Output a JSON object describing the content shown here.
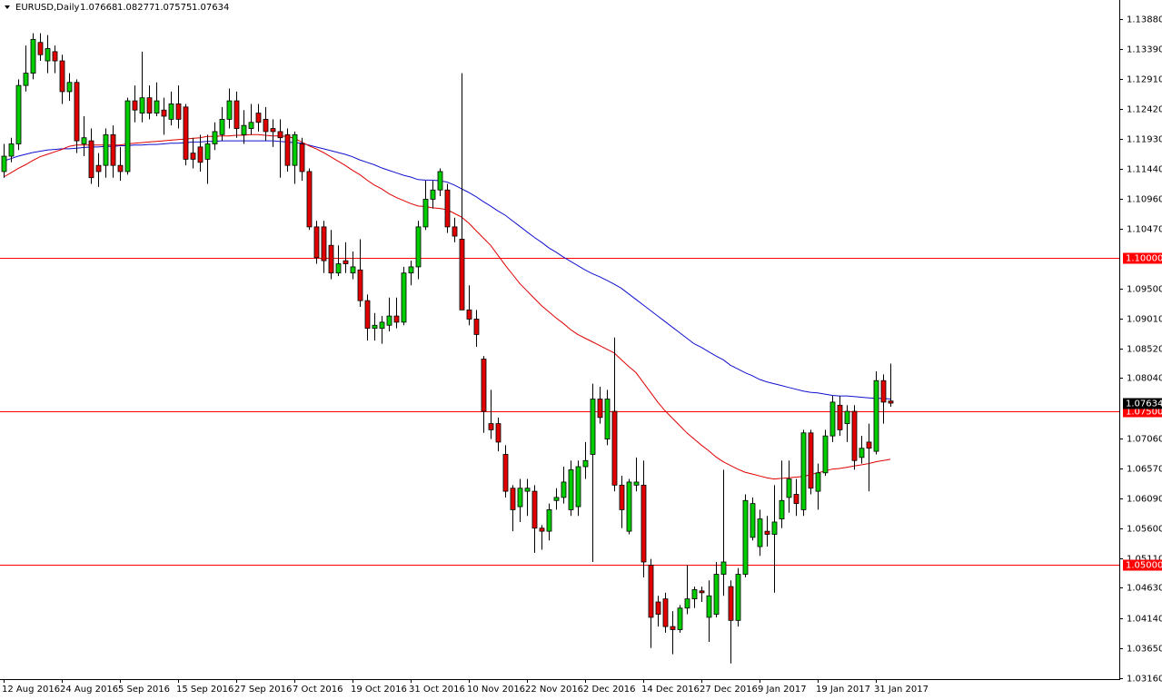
{
  "chart_data": {
    "type": "candlestick",
    "title": "EURUSD,Daily",
    "categories": [
      "12 Aug 2016",
      null,
      null,
      null,
      null,
      null,
      null,
      null,
      "24 Aug 2016",
      null,
      null,
      null,
      null,
      null,
      null,
      null,
      "5 Sep 2016",
      null,
      null,
      null,
      null,
      null,
      null,
      null,
      "15 Sep 2016",
      null,
      null,
      null,
      null,
      null,
      null,
      null,
      "27 Sep 2016",
      null,
      null,
      null,
      null,
      null,
      null,
      null,
      "7 Oct 2016",
      null,
      null,
      null,
      null,
      null,
      null,
      null,
      "19 Oct 2016",
      null,
      null,
      null,
      null,
      null,
      null,
      null,
      "31 Oct 2016",
      null,
      null,
      null,
      null,
      null,
      null,
      null,
      "10 Nov 2016",
      null,
      null,
      null,
      null,
      null,
      null,
      null,
      "22 Nov 2016",
      null,
      null,
      null,
      null,
      null,
      null,
      null,
      "2 Dec 2016",
      null,
      null,
      null,
      null,
      null,
      null,
      null,
      "14 Dec 2016",
      null,
      null,
      null,
      null,
      null,
      null,
      null,
      "27 Dec 2016",
      null,
      null,
      null,
      null,
      null,
      null,
      null,
      "9 Jan 2017",
      null,
      null,
      null,
      null,
      null,
      null,
      null,
      "19 Jan 2017",
      null,
      null,
      null,
      null,
      null,
      null,
      null,
      "31 Jan 2017",
      null,
      null
    ],
    "open": [
      1.114,
      1.1165,
      1.1185,
      1.128,
      1.13,
      1.135,
      1.132,
      1.1335,
      1.132,
      1.127,
      1.1285,
      1.1185,
      1.119,
      1.115,
      1.115,
      1.12,
      1.115,
      1.114,
      1.1255,
      1.1235,
      1.126,
      1.1235,
      1.124,
      1.1225,
      1.125,
      1.1245,
      1.117,
      1.118,
      1.116,
      1.1185,
      1.12,
      1.1225,
      1.1255,
      1.12,
      1.121,
      1.1235,
      1.1225,
      1.121,
      1.1205,
      1.12,
      1.115,
      1.1185,
      1.114,
      1.105,
      1.105,
      1.102,
      1.0975,
      1.0995,
      1.0975,
      1.098,
      1.093,
      1.0885,
      1.0885,
      1.089,
      1.0905,
      1.0895,
      1.0975,
      1.0985,
      1.105,
      1.1095,
      1.111,
      1.111,
      1.105,
      1.103,
      1.0915,
      1.09,
      1.0835,
      1.073,
      1.073,
      1.068,
      1.0625,
      1.0595,
      1.062,
      1.062,
      1.056,
      1.0555,
      1.0605,
      1.061,
      1.059,
      1.0595,
      1.066,
      1.068,
      1.077,
      1.0705,
      1.075,
      1.063,
      1.0555,
      1.063,
      1.063,
      1.05,
      1.044,
      1.0445,
      1.04,
      1.0395,
      1.043,
      1.0445,
      1.0458,
      1.0415,
      1.042,
      1.0485,
      1.0465,
      1.041,
      1.0485,
      1.0545,
      1.053,
      1.0555,
      1.055,
      1.0575,
      1.061,
      1.0615,
      1.059,
      1.0715,
      1.062,
      1.065,
      1.071,
      1.076,
      1.073,
      1.075,
      1.0675,
      1.07,
      1.0685,
      1.08,
      1.07668
    ],
    "high": [
      1.1185,
      1.1195,
      1.129,
      1.1345,
      1.1365,
      1.1365,
      1.1362,
      1.1345,
      1.133,
      1.13,
      1.129,
      1.123,
      1.121,
      1.117,
      1.121,
      1.1215,
      1.118,
      1.126,
      1.128,
      1.1335,
      1.128,
      1.1285,
      1.126,
      1.127,
      1.128,
      1.125,
      1.1195,
      1.12,
      1.12,
      1.122,
      1.1245,
      1.1275,
      1.127,
      1.124,
      1.125,
      1.125,
      1.1245,
      1.1225,
      1.1225,
      1.121,
      1.1205,
      1.1195,
      1.1145,
      1.106,
      1.106,
      1.1045,
      1.102,
      1.1025,
      1.101,
      1.103,
      1.094,
      1.091,
      1.0905,
      1.0935,
      1.0935,
      1.0985,
      1.0995,
      1.106,
      1.1125,
      1.1125,
      1.1145,
      1.112,
      1.1065,
      1.13,
      1.0955,
      1.0915,
      1.084,
      1.0785,
      1.074,
      1.0695,
      1.063,
      1.064,
      1.064,
      1.063,
      1.0565,
      1.06,
      1.0625,
      1.066,
      1.067,
      1.067,
      1.07,
      1.0795,
      1.079,
      1.0785,
      1.087,
      1.0645,
      1.064,
      1.0675,
      1.067,
      1.051,
      1.045,
      1.0455,
      1.0425,
      1.0435,
      1.05,
      1.0465,
      1.0465,
      1.0475,
      1.0505,
      1.0655,
      1.0475,
      1.0495,
      1.0615,
      1.061,
      1.059,
      1.058,
      1.063,
      1.067,
      1.067,
      1.064,
      1.072,
      1.072,
      1.0665,
      1.072,
      1.0775,
      1.0775,
      1.076,
      1.076,
      1.071,
      1.073,
      1.0815,
      1.081,
      1.08277
    ],
    "low": [
      1.113,
      1.1155,
      1.1175,
      1.127,
      1.129,
      1.132,
      1.13,
      1.13,
      1.125,
      1.1255,
      1.117,
      1.1165,
      1.112,
      1.1115,
      1.113,
      1.113,
      1.1125,
      1.1135,
      1.122,
      1.122,
      1.1225,
      1.123,
      1.12,
      1.1215,
      1.121,
      1.115,
      1.1145,
      1.114,
      1.112,
      1.1175,
      1.119,
      1.121,
      1.1195,
      1.1185,
      1.12,
      1.1205,
      1.119,
      1.118,
      1.113,
      1.114,
      1.112,
      1.1125,
      1.1045,
      1.099,
      1.0975,
      1.0965,
      1.097,
      1.0975,
      1.0965,
      1.092,
      1.0865,
      1.0865,
      1.086,
      1.088,
      1.0885,
      1.089,
      1.0955,
      1.0965,
      1.1045,
      1.108,
      1.11,
      1.104,
      1.1025,
      1.0915,
      1.089,
      1.0855,
      1.0715,
      1.0705,
      1.0685,
      1.061,
      1.0555,
      1.057,
      1.058,
      1.052,
      1.0525,
      1.054,
      1.059,
      1.06,
      1.058,
      1.058,
      1.064,
      1.0505,
      1.073,
      1.0695,
      1.062,
      1.056,
      1.055,
      1.062,
      1.048,
      1.0365,
      1.04,
      1.039,
      1.0355,
      1.039,
      1.042,
      1.043,
      1.044,
      1.0375,
      1.0415,
      1.045,
      1.034,
      1.04,
      1.048,
      1.054,
      1.0515,
      1.053,
      1.0455,
      1.056,
      1.0585,
      1.058,
      1.058,
      1.0615,
      1.059,
      1.0645,
      1.07,
      1.071,
      1.07,
      1.0655,
      1.0665,
      1.062,
      1.068,
      1.073,
      1.07575
    ],
    "close": [
      1.1165,
      1.1185,
      1.128,
      1.13,
      1.1355,
      1.133,
      1.134,
      1.132,
      1.127,
      1.1285,
      1.119,
      1.1195,
      1.113,
      1.114,
      1.12,
      1.115,
      1.114,
      1.1255,
      1.124,
      1.126,
      1.1235,
      1.1255,
      1.123,
      1.125,
      1.1225,
      1.116,
      1.116,
      1.1155,
      1.1185,
      1.1205,
      1.1225,
      1.1255,
      1.121,
      1.1215,
      1.122,
      1.122,
      1.1205,
      1.1205,
      1.1195,
      1.115,
      1.12,
      1.114,
      1.105,
      1.1,
      1.0995,
      1.0975,
      1.099,
      1.099,
      1.0985,
      1.093,
      1.0885,
      1.089,
      1.0895,
      1.0905,
      1.0895,
      1.0975,
      1.0985,
      1.105,
      1.1095,
      1.111,
      1.114,
      1.105,
      1.1035,
      1.0915,
      1.09,
      1.0875,
      1.075,
      1.072,
      1.07,
      1.062,
      1.059,
      1.0625,
      1.0625,
      1.056,
      1.0555,
      1.059,
      1.061,
      1.0635,
      1.0655,
      1.066,
      1.067,
      1.077,
      1.074,
      1.077,
      1.063,
      1.059,
      1.0635,
      1.0635,
      1.0505,
      1.0415,
      1.042,
      1.04,
      1.0395,
      1.043,
      1.0445,
      1.046,
      1.0455,
      1.045,
      1.0485,
      1.0505,
      1.041,
      1.0485,
      1.0605,
      1.06,
      1.0575,
      1.055,
      1.057,
      1.0605,
      1.064,
      1.06,
      1.0715,
      1.0625,
      1.065,
      1.071,
      1.0765,
      1.072,
      1.075,
      1.067,
      1.069,
      1.069,
      1.08,
      1.0765,
      1.07634
    ],
    "up_color": "#00cc00",
    "down_color": "#e00000",
    "lines": [
      {
        "color": "#1010d0",
        "values": [
          1.1157,
          1.1161,
          1.1165,
          1.1168,
          1.1171,
          1.1173,
          1.1175,
          1.1176,
          1.1177,
          1.1177,
          1.1178,
          1.1179,
          1.118,
          1.118,
          1.1181,
          1.1181,
          1.1182,
          1.1182,
          1.1183,
          1.1183,
          1.1184,
          1.1184,
          1.1185,
          1.1186,
          1.1186,
          1.1187,
          1.1188,
          1.1188,
          1.1189,
          1.1189,
          1.119,
          1.119,
          1.119,
          1.119,
          1.119,
          1.119,
          1.119,
          1.119,
          1.1189,
          1.1188,
          1.1187,
          1.1186,
          1.1183,
          1.118,
          1.1177,
          1.1174,
          1.1171,
          1.1168,
          1.1164,
          1.1159,
          1.1155,
          1.1151,
          1.1146,
          1.1142,
          1.1138,
          1.1134,
          1.1131,
          1.1127,
          1.1126,
          1.1126,
          1.1125,
          1.1123,
          1.1118,
          1.1112,
          1.1106,
          1.1099,
          1.1091,
          1.1084,
          1.1076,
          1.1069,
          1.106,
          1.1051,
          1.1042,
          1.1033,
          1.1025,
          1.1016,
          1.1009,
          1.1001,
          1.0994,
          1.0987,
          1.098,
          1.0974,
          1.0969,
          1.0963,
          1.0957,
          1.095,
          1.0941,
          1.0932,
          1.0923,
          1.0914,
          1.0905,
          1.0896,
          1.0887,
          1.0878,
          1.0869,
          1.086,
          1.0854,
          1.0847,
          1.084,
          1.0834,
          1.0825,
          1.0819,
          1.0813,
          1.0808,
          1.0802,
          1.0798,
          1.0795,
          1.0792,
          1.0789,
          1.0786,
          1.0783,
          1.0781,
          1.078,
          1.0778,
          1.0776,
          1.0775,
          1.0775,
          1.0774,
          1.0773,
          1.0772,
          1.0771,
          1.0771,
          1.077
        ]
      },
      {
        "color": "#e00000",
        "values": [
          1.1131,
          1.1138,
          1.1145,
          1.1151,
          1.1158,
          1.1164,
          1.1168,
          1.1172,
          1.1176,
          1.1181,
          1.1183,
          1.1183,
          1.1183,
          1.1183,
          1.1183,
          1.1183,
          1.1183,
          1.1185,
          1.1186,
          1.1187,
          1.1188,
          1.1189,
          1.119,
          1.1191,
          1.1192,
          1.1193,
          1.1194,
          1.1195,
          1.1197,
          1.1197,
          1.1198,
          1.1198,
          1.1199,
          1.1199,
          1.12,
          1.12,
          1.1199,
          1.1198,
          1.1198,
          1.1197,
          1.1194,
          1.1188,
          1.1182,
          1.1177,
          1.1171,
          1.1164,
          1.1157,
          1.115,
          1.1142,
          1.1135,
          1.1126,
          1.1118,
          1.1112,
          1.1104,
          1.1098,
          1.1093,
          1.1088,
          1.1084,
          1.1083,
          1.1081,
          1.108,
          1.1078,
          1.1072,
          1.1066,
          1.1056,
          1.1044,
          1.1032,
          1.102,
          1.1004,
          1.0988,
          1.0973,
          1.0958,
          1.0946,
          1.0934,
          1.0922,
          1.0912,
          1.0902,
          1.0893,
          1.0883,
          1.0875,
          1.0869,
          1.0863,
          1.0857,
          1.0851,
          1.0845,
          1.0834,
          1.0823,
          1.0813,
          1.0797,
          1.0781,
          1.0765,
          1.0751,
          1.0739,
          1.0727,
          1.0715,
          1.0705,
          1.0695,
          1.0686,
          1.0676,
          1.0668,
          1.0662,
          1.0656,
          1.0651,
          1.0648,
          1.0645,
          1.0642,
          1.064,
          1.0641,
          1.0642,
          1.0643,
          1.0644,
          1.0647,
          1.065,
          1.0653,
          1.0656,
          1.0657,
          1.0659,
          1.0661,
          1.0663,
          1.0665,
          1.0668,
          1.067,
          1.0672
        ]
      }
    ],
    "levels": [
      {
        "value": 1.1,
        "label": "1.10000"
      },
      {
        "value": 1.075,
        "label": "1.07500"
      },
      {
        "value": 1.05,
        "label": "1.05000"
      }
    ],
    "level_color": "#ff0000",
    "ylim": [
      1.03145,
      1.1419
    ],
    "yticks": [
      {
        "value": 1.1388,
        "label": "1.13880"
      },
      {
        "value": 1.1339,
        "label": "1.13390"
      },
      {
        "value": 1.1291,
        "label": "1.12910"
      },
      {
        "value": 1.1242,
        "label": "1.12420"
      },
      {
        "value": 1.1193,
        "label": "1.11930"
      },
      {
        "value": 1.1144,
        "label": "1.11440"
      },
      {
        "value": 1.1096,
        "label": "1.10960"
      },
      {
        "value": 1.1047,
        "label": "1.10470"
      },
      {
        "value": 1.095,
        "label": "1.09500"
      },
      {
        "value": 1.0901,
        "label": "1.09010"
      },
      {
        "value": 1.0852,
        "label": "1.08520"
      },
      {
        "value": 1.0804,
        "label": "1.08040"
      },
      {
        "value": 1.0706,
        "label": "1.07060"
      },
      {
        "value": 1.0657,
        "label": "1.06570"
      },
      {
        "value": 1.0609,
        "label": "1.06090"
      },
      {
        "value": 1.056,
        "label": "1.05600"
      },
      {
        "value": 1.0511,
        "label": "1.05110"
      },
      {
        "value": 1.0463,
        "label": "1.04630"
      },
      {
        "value": 1.0414,
        "label": "1.04140"
      },
      {
        "value": 1.0365,
        "label": "1.03650"
      },
      {
        "value": 1.0316,
        "label": "1.03160"
      }
    ]
  }
}
